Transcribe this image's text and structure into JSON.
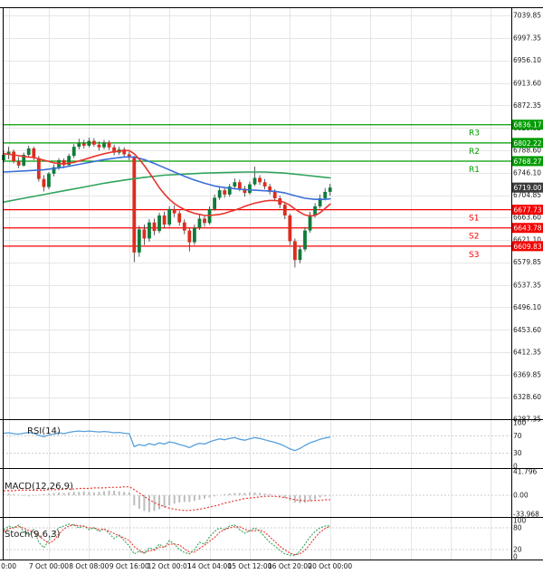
{
  "colors": {
    "bg": "#ffffff",
    "grid": "#e6e6e6",
    "axis_text": "#1a1a1a",
    "resistance": "#009b00",
    "support": "#f40000",
    "current": "#3c3c3c",
    "candle_up": "#0e7c3a",
    "candle_down": "#dd2c1e",
    "wick": "#333333",
    "rsi_line": "#58a0dc",
    "macd_signal": "#e8352e",
    "macd_hist": "#bdbdbd",
    "stoch_k": "#2fa35c",
    "stoch_d": "#e8352e",
    "ref_dotted": "#cccccc"
  },
  "chart_data": {
    "type": "candlestick",
    "price_range": [
      6287.35,
      7039.85
    ],
    "y_axis_ticks": [
      "7039.85",
      "6997.35",
      "6956.10",
      "6913.60",
      "6872.35",
      "6829.85",
      "6788.60",
      "6746.10",
      "6704.85",
      "6663.60",
      "6621.10",
      "6579.85",
      "6537.35",
      "6496.10",
      "6453.60",
      "6412.35",
      "6369.85",
      "6328.60",
      "6287.35"
    ],
    "x_axis_labels": [
      "0:00",
      "7 Oct 00:00",
      "8 Oct 08:00",
      "9 Oct 16:00",
      "12 Oct 00:01",
      "14 Oct 04:00",
      "15 Oct 12:00",
      "16 Oct 20:00",
      "20 Oct 00:00"
    ],
    "current_price": 6719.0,
    "current_price_display": "6719.00",
    "pivot_levels": {
      "resistance": [
        {
          "label": "R3",
          "price": 6836.17,
          "display": "6836.17"
        },
        {
          "label": "R2",
          "price": 6802.22,
          "display": "6802.22"
        },
        {
          "label": "R1",
          "price": 6768.27,
          "display": "6768.27"
        }
      ],
      "support": [
        {
          "label": "S1",
          "price": 6677.73,
          "display": "6677.73"
        },
        {
          "label": "S2",
          "price": 6643.78,
          "display": "6643.78"
        },
        {
          "label": "S3",
          "price": 6609.83,
          "display": "6609.83"
        }
      ]
    },
    "candles_ohlc": [
      [
        6770,
        6788,
        6765,
        6780
      ],
      [
        6780,
        6795,
        6772,
        6786
      ],
      [
        6786,
        6790,
        6764,
        6768
      ],
      [
        6768,
        6776,
        6755,
        6760
      ],
      [
        6760,
        6784,
        6758,
        6780
      ],
      [
        6780,
        6797,
        6776,
        6792
      ],
      [
        6792,
        6795,
        6770,
        6774
      ],
      [
        6774,
        6778,
        6730,
        6735
      ],
      [
        6735,
        6742,
        6712,
        6720
      ],
      [
        6720,
        6748,
        6716,
        6745
      ],
      [
        6745,
        6762,
        6740,
        6757
      ],
      [
        6757,
        6774,
        6752,
        6770
      ],
      [
        6770,
        6773,
        6755,
        6761
      ],
      [
        6761,
        6782,
        6758,
        6778
      ],
      [
        6778,
        6800,
        6774,
        6795
      ],
      [
        6795,
        6810,
        6790,
        6801
      ],
      [
        6801,
        6808,
        6792,
        6797
      ],
      [
        6797,
        6812,
        6794,
        6806
      ],
      [
        6806,
        6811,
        6795,
        6799
      ],
      [
        6799,
        6805,
        6788,
        6794
      ],
      [
        6794,
        6808,
        6790,
        6803
      ],
      [
        6803,
        6807,
        6789,
        6794
      ],
      [
        6794,
        6799,
        6779,
        6784
      ],
      [
        6784,
        6795,
        6780,
        6790
      ],
      [
        6790,
        6794,
        6776,
        6781
      ],
      [
        6781,
        6786,
        6770,
        6775
      ],
      [
        6775,
        6778,
        6580,
        6598
      ],
      [
        6598,
        6648,
        6590,
        6641
      ],
      [
        6641,
        6650,
        6612,
        6624
      ],
      [
        6624,
        6660,
        6618,
        6654
      ],
      [
        6654,
        6661,
        6630,
        6638
      ],
      [
        6638,
        6672,
        6634,
        6667
      ],
      [
        6667,
        6674,
        6644,
        6650
      ],
      [
        6650,
        6684,
        6646,
        6679
      ],
      [
        6679,
        6686,
        6664,
        6671
      ],
      [
        6671,
        6676,
        6648,
        6654
      ],
      [
        6654,
        6660,
        6632,
        6639
      ],
      [
        6639,
        6644,
        6600,
        6617
      ],
      [
        6617,
        6650,
        6612,
        6644
      ],
      [
        6644,
        6668,
        6640,
        6661
      ],
      [
        6661,
        6666,
        6646,
        6653
      ],
      [
        6653,
        6684,
        6650,
        6679
      ],
      [
        6679,
        6706,
        6676,
        6700
      ],
      [
        6700,
        6720,
        6696,
        6714
      ],
      [
        6714,
        6719,
        6700,
        6706
      ],
      [
        6706,
        6726,
        6702,
        6721
      ],
      [
        6721,
        6736,
        6716,
        6729
      ],
      [
        6729,
        6734,
        6712,
        6717
      ],
      [
        6717,
        6722,
        6702,
        6709
      ],
      [
        6709,
        6730,
        6706,
        6725
      ],
      [
        6725,
        6758,
        6722,
        6737
      ],
      [
        6737,
        6742,
        6724,
        6729
      ],
      [
        6729,
        6735,
        6716,
        6721
      ],
      [
        6721,
        6726,
        6706,
        6711
      ],
      [
        6711,
        6716,
        6694,
        6699
      ],
      [
        6699,
        6704,
        6680,
        6687
      ],
      [
        6687,
        6692,
        6660,
        6667
      ],
      [
        6667,
        6670,
        6612,
        6619
      ],
      [
        6619,
        6624,
        6570,
        6584
      ],
      [
        6584,
        6610,
        6578,
        6604
      ],
      [
        6604,
        6645,
        6600,
        6639
      ],
      [
        6639,
        6674,
        6635,
        6668
      ],
      [
        6668,
        6690,
        6663,
        6684
      ],
      [
        6684,
        6706,
        6680,
        6699
      ],
      [
        6699,
        6718,
        6695,
        6711
      ],
      [
        6711,
        6726,
        6704,
        6719
      ]
    ],
    "moving_averages": [
      {
        "name": "ma-line-green",
        "color": "#2fa35c",
        "points": [
          [
            0,
            6692
          ],
          [
            4,
            6699
          ],
          [
            8,
            6706
          ],
          [
            12,
            6713
          ],
          [
            16,
            6720
          ],
          [
            20,
            6727
          ],
          [
            24,
            6733
          ],
          [
            28,
            6738
          ],
          [
            32,
            6742
          ],
          [
            36,
            6744
          ],
          [
            40,
            6746
          ],
          [
            44,
            6747
          ],
          [
            48,
            6748
          ],
          [
            52,
            6748
          ],
          [
            56,
            6746
          ],
          [
            60,
            6742
          ],
          [
            63,
            6739
          ],
          [
            65,
            6737
          ]
        ]
      },
      {
        "name": "ma-line-blue",
        "color": "#3a6fd8",
        "points": [
          [
            0,
            6748
          ],
          [
            4,
            6750
          ],
          [
            8,
            6752
          ],
          [
            12,
            6757
          ],
          [
            16,
            6764
          ],
          [
            20,
            6771
          ],
          [
            24,
            6776
          ],
          [
            26,
            6776
          ],
          [
            28,
            6771
          ],
          [
            30,
            6764
          ],
          [
            32,
            6756
          ],
          [
            34,
            6748
          ],
          [
            36,
            6740
          ],
          [
            38,
            6733
          ],
          [
            40,
            6727
          ],
          [
            42,
            6722
          ],
          [
            44,
            6719
          ],
          [
            46,
            6717
          ],
          [
            48,
            6715
          ],
          [
            50,
            6714
          ],
          [
            52,
            6713
          ],
          [
            54,
            6712
          ],
          [
            56,
            6709
          ],
          [
            58,
            6704
          ],
          [
            60,
            6699
          ],
          [
            62,
            6697
          ],
          [
            64,
            6697
          ],
          [
            65,
            6698
          ]
        ]
      },
      {
        "name": "ma-line-red",
        "color": "#e8352e",
        "points": [
          [
            0,
            6782
          ],
          [
            2,
            6780
          ],
          [
            4,
            6777
          ],
          [
            6,
            6775
          ],
          [
            8,
            6770
          ],
          [
            10,
            6765
          ],
          [
            12,
            6763
          ],
          [
            14,
            6766
          ],
          [
            16,
            6771
          ],
          [
            18,
            6777
          ],
          [
            20,
            6782
          ],
          [
            22,
            6786
          ],
          [
            24,
            6788
          ],
          [
            25,
            6788
          ],
          [
            26,
            6782
          ],
          [
            27,
            6772
          ],
          [
            28,
            6760
          ],
          [
            29,
            6747
          ],
          [
            30,
            6733
          ],
          [
            31,
            6719
          ],
          [
            32,
            6707
          ],
          [
            33,
            6697
          ],
          [
            34,
            6689
          ],
          [
            35,
            6683
          ],
          [
            36,
            6678
          ],
          [
            37,
            6674
          ],
          [
            38,
            6671
          ],
          [
            39,
            6669
          ],
          [
            40,
            6667
          ],
          [
            41,
            6667
          ],
          [
            42,
            6668
          ],
          [
            43,
            6669
          ],
          [
            44,
            6671
          ],
          [
            45,
            6674
          ],
          [
            46,
            6677
          ],
          [
            47,
            6680
          ],
          [
            48,
            6684
          ],
          [
            49,
            6687
          ],
          [
            50,
            6690
          ],
          [
            51,
            6692
          ],
          [
            52,
            6694
          ],
          [
            53,
            6695
          ],
          [
            54,
            6695
          ],
          [
            55,
            6694
          ],
          [
            56,
            6691
          ],
          [
            57,
            6686
          ],
          [
            58,
            6679
          ],
          [
            59,
            6673
          ],
          [
            60,
            6668
          ],
          [
            61,
            6666
          ],
          [
            62,
            6667
          ],
          [
            63,
            6672
          ],
          [
            64,
            6680
          ],
          [
            65,
            6688
          ]
        ]
      }
    ],
    "indicators": {
      "rsi": {
        "label": "RSI(14)",
        "ticks": [
          "100",
          "70",
          "30",
          "0"
        ],
        "ref_levels": [
          70,
          30
        ],
        "values": [
          76,
          77,
          75,
          74,
          76,
          78,
          76,
          71,
          68,
          72,
          74,
          77,
          75,
          78,
          80,
          81,
          80,
          81,
          80,
          79,
          80,
          79,
          77,
          78,
          76,
          75,
          45,
          50,
          47,
          52,
          49,
          54,
          51,
          56,
          54,
          50,
          47,
          43,
          49,
          53,
          51,
          56,
          60,
          63,
          61,
          64,
          66,
          62,
          60,
          63,
          66,
          64,
          61,
          58,
          55,
          51,
          46,
          40,
          36,
          41,
          48,
          54,
          58,
          62,
          65,
          67
        ]
      },
      "macd": {
        "label": "MACD(12,26,9)",
        "ticks": [
          "41.796",
          "0.00",
          "-33.968"
        ],
        "histogram": [
          2,
          3,
          2,
          1,
          -1,
          -2,
          -1,
          1,
          2,
          3,
          4,
          5,
          4,
          5,
          6,
          6,
          7,
          6,
          5,
          6,
          7,
          8,
          8,
          7,
          6,
          5,
          -18,
          -24,
          -28,
          -30,
          -28,
          -25,
          -22,
          -18,
          -15,
          -13,
          -12,
          -12,
          -10,
          -8,
          -6,
          -4,
          -2,
          0,
          2,
          3,
          4,
          4,
          4,
          5,
          5,
          4,
          3,
          2,
          0,
          -2,
          -5,
          -9,
          -13,
          -14,
          -13,
          -10,
          -7,
          -4,
          -2,
          -1
        ],
        "signal": [
          8,
          8,
          8,
          9,
          9,
          9,
          9,
          9,
          9,
          10,
          10,
          10,
          11,
          11,
          11,
          12,
          12,
          12,
          13,
          13,
          13,
          14,
          14,
          14,
          15,
          15,
          10,
          4,
          -2,
          -8,
          -13,
          -17,
          -20,
          -23,
          -25,
          -26,
          -27,
          -27,
          -26,
          -25,
          -23,
          -21,
          -19,
          -17,
          -14,
          -12,
          -10,
          -8,
          -6,
          -5,
          -4,
          -3,
          -2,
          -2,
          -2,
          -3,
          -4,
          -6,
          -8,
          -9,
          -10,
          -10,
          -9,
          -9,
          -8,
          -8
        ]
      },
      "stoch": {
        "label": "Stoch(9,6,3)",
        "ticks": [
          "100",
          "80",
          "20",
          "0"
        ],
        "ref_levels": [
          80,
          20
        ],
        "k": [
          75,
          85,
          80,
          88,
          70,
          60,
          75,
          40,
          25,
          45,
          65,
          80,
          85,
          90,
          88,
          80,
          85,
          75,
          80,
          70,
          78,
          65,
          50,
          60,
          45,
          30,
          8,
          15,
          10,
          25,
          20,
          35,
          25,
          45,
          35,
          20,
          12,
          8,
          20,
          40,
          35,
          55,
          70,
          80,
          75,
          85,
          88,
          75,
          65,
          72,
          80,
          70,
          55,
          40,
          30,
          18,
          8,
          5,
          4,
          15,
          35,
          55,
          70,
          80,
          85,
          86
        ],
        "d": [
          70,
          78,
          80,
          84,
          79,
          73,
          68,
          58,
          47,
          37,
          45,
          63,
          77,
          85,
          88,
          86,
          84,
          80,
          80,
          75,
          76,
          71,
          64,
          58,
          52,
          45,
          28,
          18,
          11,
          17,
          18,
          27,
          27,
          35,
          35,
          33,
          22,
          13,
          13,
          23,
          32,
          43,
          53,
          68,
          75,
          80,
          83,
          83,
          76,
          71,
          72,
          74,
          68,
          55,
          42,
          29,
          19,
          10,
          6,
          8,
          18,
          35,
          53,
          68,
          78,
          84
        ]
      }
    }
  }
}
